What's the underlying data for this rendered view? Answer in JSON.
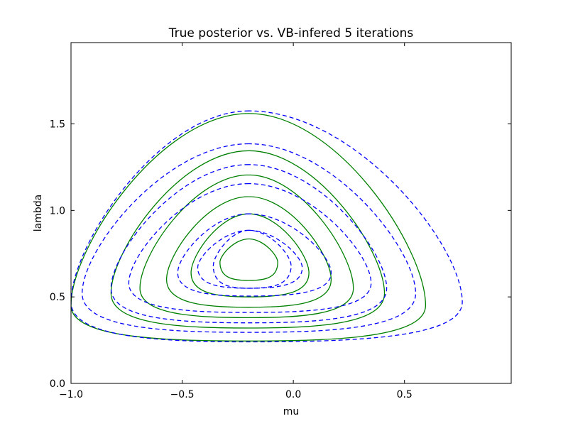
{
  "chart_data": {
    "type": "line",
    "title": "True posterior vs. VB-infered 5 iterations",
    "xlabel": "mu",
    "ylabel": "lambda",
    "xlim": [
      -1.0,
      0.98
    ],
    "ylim": [
      0.0,
      1.97
    ],
    "xticks": [
      -1.0,
      -0.5,
      0.0,
      0.5
    ],
    "xtick_labels": [
      "−1.0",
      "−0.5",
      "0.0",
      "0.5"
    ],
    "yticks": [
      0.0,
      0.5,
      1.0,
      1.5
    ],
    "ytick_labels": [
      "0.0",
      "0.5",
      "1.0",
      "1.5"
    ],
    "grid": false,
    "colors": {
      "true_posterior": "#008000",
      "vb_approximation": "#0000ff"
    },
    "series": [
      {
        "style": "solid",
        "color": "#008000",
        "contours": [
          {
            "level_index": 1,
            "mu_peak": -0.2,
            "lambda_top": 1.56,
            "lambda_bottom": 0.245,
            "mu_left": -1.0,
            "mu_right": 0.595,
            "lambda_at_extremes": 0.45
          },
          {
            "level_index": 2,
            "mu_peak": -0.2,
            "lambda_top": 1.345,
            "lambda_bottom": 0.32,
            "mu_left": -0.82,
            "mu_right": 0.41,
            "lambda_at_extremes": 0.52
          },
          {
            "level_index": 3,
            "mu_peak": -0.2,
            "lambda_top": 1.205,
            "lambda_bottom": 0.38,
            "mu_left": -0.69,
            "mu_right": 0.27,
            "lambda_at_extremes": 0.55
          },
          {
            "level_index": 4,
            "mu_peak": -0.2,
            "lambda_top": 1.08,
            "lambda_bottom": 0.44,
            "mu_left": -0.57,
            "mu_right": 0.17,
            "lambda_at_extremes": 0.6
          },
          {
            "level_index": 5,
            "mu_peak": -0.2,
            "lambda_top": 0.98,
            "lambda_bottom": 0.5,
            "mu_left": -0.46,
            "mu_right": 0.07,
            "lambda_at_extremes": 0.64
          },
          {
            "level_index": 6,
            "mu_peak": -0.2,
            "lambda_top": 0.835,
            "lambda_bottom": 0.595,
            "mu_left": -0.33,
            "mu_right": -0.07,
            "lambda_at_extremes": 0.7
          }
        ]
      },
      {
        "style": "dashed",
        "color": "#0000ff",
        "contours": [
          {
            "level_index": 1,
            "mu_peak": -0.2,
            "lambda_top": 1.575,
            "lambda_bottom": 0.24,
            "mu_left": -1.0,
            "mu_right": 0.76,
            "lambda_at_extremes": 0.47
          },
          {
            "level_index": 2,
            "mu_peak": -0.2,
            "lambda_top": 1.385,
            "lambda_bottom": 0.295,
            "mu_left": -0.95,
            "mu_right": 0.55,
            "lambda_at_extremes": 0.52
          },
          {
            "level_index": 3,
            "mu_peak": -0.2,
            "lambda_top": 1.265,
            "lambda_bottom": 0.35,
            "mu_left": -0.82,
            "mu_right": 0.42,
            "lambda_at_extremes": 0.55
          },
          {
            "level_index": 4,
            "mu_peak": -0.2,
            "lambda_top": 1.155,
            "lambda_bottom": 0.41,
            "mu_left": -0.74,
            "mu_right": 0.35,
            "lambda_at_extremes": 0.58
          },
          {
            "level_index": 5,
            "mu_peak": -0.2,
            "lambda_top": 0.98,
            "lambda_bottom": 0.505,
            "mu_left": -0.52,
            "mu_right": 0.17,
            "lambda_at_extremes": 0.64
          },
          {
            "level_index": 6,
            "mu_peak": -0.2,
            "lambda_top": 0.885,
            "lambda_bottom": 0.55,
            "mu_left": -0.43,
            "mu_right": 0.04,
            "lambda_at_extremes": 0.67
          },
          {
            "level_index": 7,
            "mu_peak": -0.2,
            "lambda_top": 0.885,
            "lambda_bottom": 0.55,
            "mu_left": -0.36,
            "mu_right": -0.01,
            "lambda_at_extremes": 0.68
          }
        ]
      }
    ]
  }
}
